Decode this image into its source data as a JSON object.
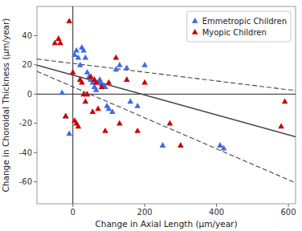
{
  "chart_data": {
    "type": "scatter",
    "xlabel": "Change in Axial Length (μm/year)",
    "ylabel": "Change in Choroidal Thickness (μm/year)",
    "xlim": [
      -100,
      620
    ],
    "ylim": [
      -75,
      60
    ],
    "xticks": [
      0,
      200,
      400,
      600
    ],
    "yticks": [
      -60,
      -40,
      -20,
      0,
      20,
      40
    ],
    "grid": false,
    "legend": "upper right",
    "series": [
      {
        "name": "Emmetropic Children",
        "type": "scatter",
        "marker": "triangle",
        "color": "#4169E1",
        "x": [
          -30,
          -20,
          -10,
          5,
          10,
          15,
          20,
          25,
          30,
          35,
          40,
          45,
          50,
          55,
          60,
          65,
          70,
          75,
          80,
          85,
          90,
          95,
          100,
          110,
          120,
          130,
          150,
          160,
          180,
          200,
          250,
          410,
          420
        ],
        "values": [
          1,
          -15,
          -27,
          27,
          30,
          25,
          20,
          32,
          30,
          25,
          15,
          12,
          10,
          8,
          5,
          3,
          8,
          10,
          7,
          6,
          5,
          -8,
          -10,
          -12,
          17,
          20,
          18,
          -5,
          -8,
          20,
          -35,
          -35,
          -37
        ]
      },
      {
        "name": "Myopic Children",
        "type": "scatter",
        "marker": "triangle",
        "color": "#CC0000",
        "x": [
          -50,
          -40,
          -35,
          -20,
          -10,
          0,
          5,
          10,
          15,
          20,
          25,
          30,
          35,
          40,
          50,
          55,
          60,
          65,
          70,
          80,
          90,
          100,
          120,
          130,
          150,
          180,
          200,
          270,
          300,
          580,
          590
        ],
        "values": [
          35,
          38,
          35,
          -15,
          50,
          15,
          -18,
          -20,
          -22,
          10,
          8,
          0,
          -5,
          0,
          12,
          -12,
          10,
          8,
          -10,
          5,
          -25,
          8,
          25,
          -20,
          10,
          -25,
          8,
          -20,
          -35,
          -22,
          -5
        ]
      },
      {
        "type": "line",
        "line_style": "solid",
        "color": "#444444",
        "x": [
          -100,
          620
        ],
        "values": [
          19.8,
          -29.16
        ]
      },
      {
        "type": "line",
        "line_style": "dashed",
        "color": "#444444",
        "x": [
          -100,
          620
        ],
        "values": [
          24,
          2.4
        ]
      },
      {
        "type": "line",
        "line_style": "dashed",
        "color": "#444444",
        "x": [
          -100,
          620
        ],
        "values": [
          15.6,
          -60.72
        ]
      }
    ]
  }
}
